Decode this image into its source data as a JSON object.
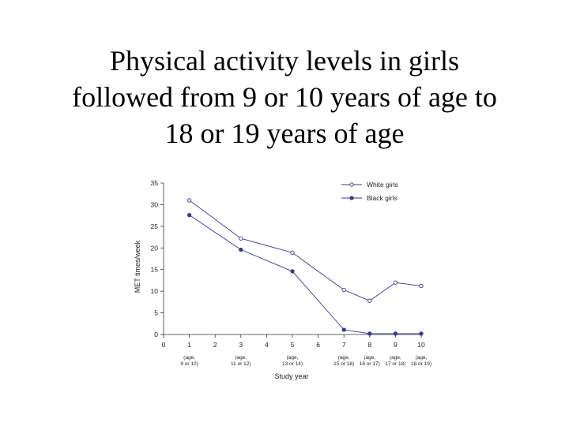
{
  "slide": {
    "title_lines": [
      "Physical activity levels in girls",
      "followed from 9 or 10 years of age to",
      "18 or 19 years of age"
    ]
  },
  "colors": {
    "series": "#3a3a8a",
    "axis": "#333333"
  },
  "chart_data": {
    "type": "line",
    "title": "Physical activity levels in girls followed from 9 or 10 years of age to 18 or 19 years of age",
    "xlabel": "Study year",
    "ylabel": "MET times/week",
    "xlim": [
      0,
      10
    ],
    "ylim": [
      0,
      35
    ],
    "x_ticks": [
      0,
      1,
      2,
      3,
      4,
      5,
      6,
      7,
      8,
      9,
      10
    ],
    "y_ticks": [
      0,
      5,
      10,
      15,
      20,
      25,
      30,
      35
    ],
    "x_sublabels": [
      {
        "x": 1,
        "lines": [
          "(age,",
          "9 or 10)"
        ]
      },
      {
        "x": 3,
        "lines": [
          "(age,",
          "11 or 12)"
        ]
      },
      {
        "x": 5,
        "lines": [
          "(age,",
          "13 or 14)"
        ]
      },
      {
        "x": 7,
        "lines": [
          "(age,",
          "15 or 16)"
        ]
      },
      {
        "x": 8,
        "lines": [
          "(age,",
          "16 or 17)"
        ]
      },
      {
        "x": 9,
        "lines": [
          "(age,",
          "17 or 18)"
        ]
      },
      {
        "x": 10,
        "lines": [
          "(age,",
          "18 or 19)"
        ]
      }
    ],
    "legend_position": "top-right",
    "grid": false,
    "series": [
      {
        "name": "White girls",
        "marker": "open-circle",
        "x": [
          1,
          3,
          5,
          7,
          8,
          9,
          10
        ],
        "y": [
          31,
          22.2,
          18.9,
          10.3,
          7.8,
          12,
          11.2
        ]
      },
      {
        "name": "Black girls",
        "marker": "filled-circle",
        "x": [
          1,
          3,
          5,
          7,
          8,
          9,
          10
        ],
        "y": [
          27.6,
          19.6,
          14.6,
          1.1,
          0.2,
          0.2,
          0.2
        ]
      }
    ]
  }
}
